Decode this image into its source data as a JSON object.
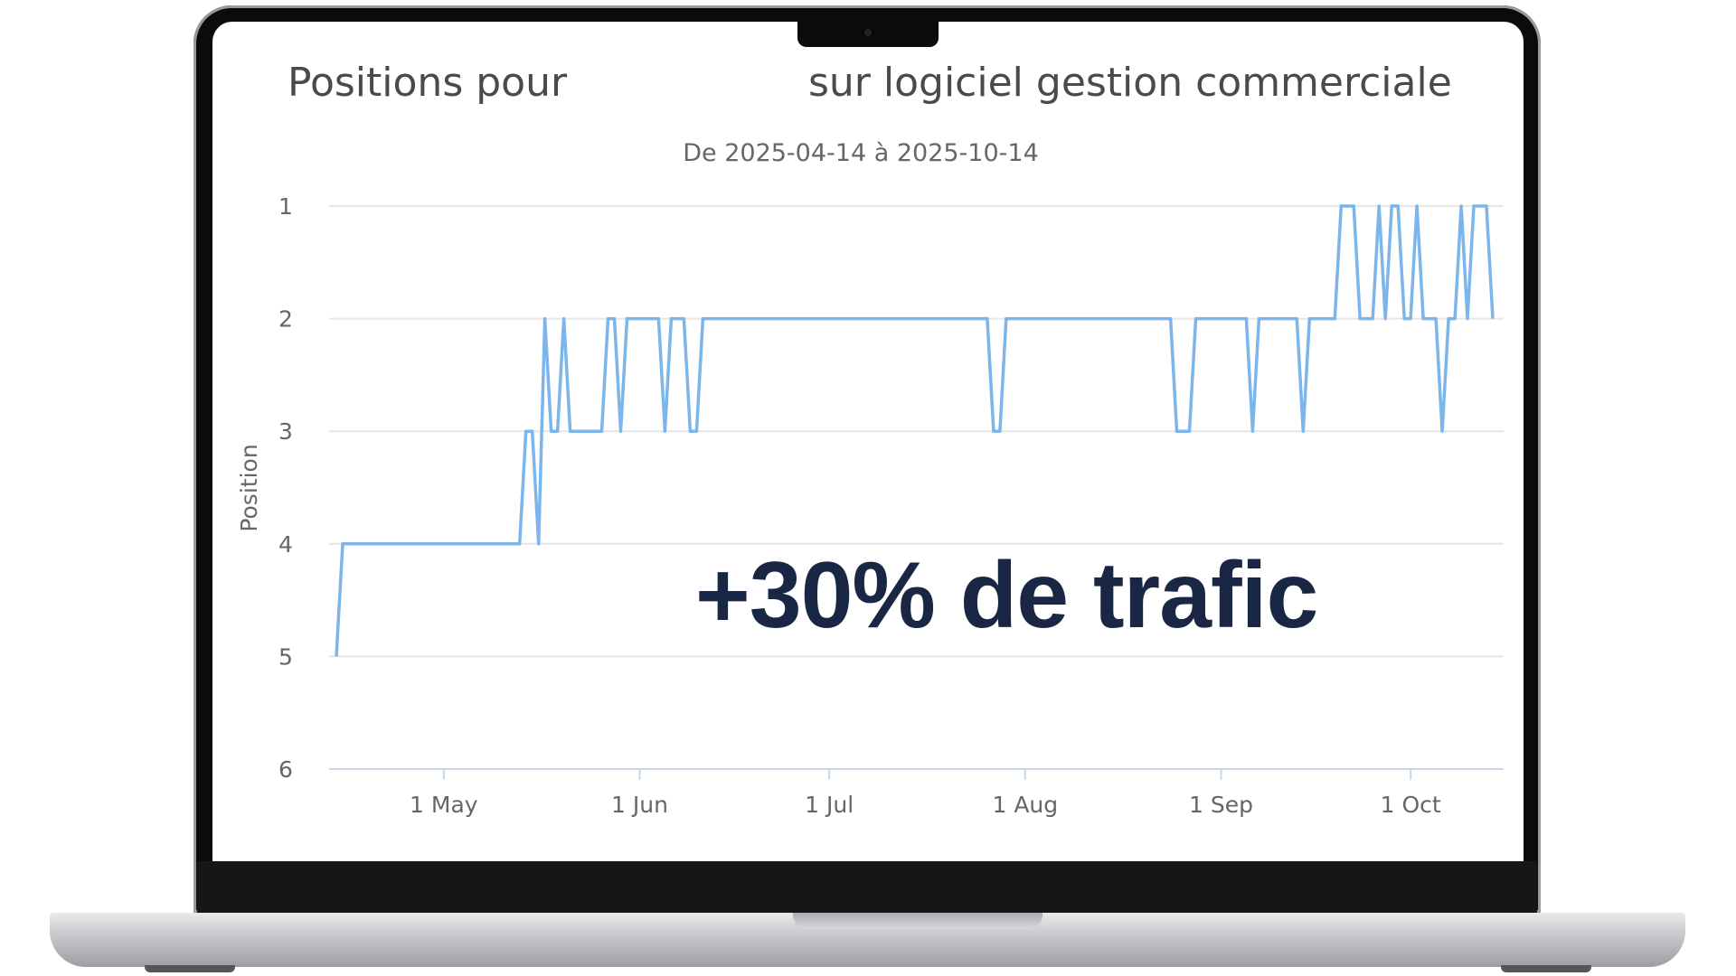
{
  "chart_data": {
    "type": "line",
    "title_prefix": "Positions pour",
    "title_suffix": "sur logiciel gestion commerciale",
    "subtitle": "De 2025-04-14 à 2025-10-14",
    "ylabel": "Position",
    "xlabel": "",
    "y_reversed": true,
    "ylim": [
      1,
      6
    ],
    "yticks": [
      "1",
      "2",
      "3",
      "4",
      "5",
      "6"
    ],
    "xlim": [
      "2025-04-14",
      "2025-10-14"
    ],
    "xticks": [
      {
        "label": "1 May",
        "date": "2025-05-01"
      },
      {
        "label": "1 Jun",
        "date": "2025-06-01"
      },
      {
        "label": "1 Jul",
        "date": "2025-07-01"
      },
      {
        "label": "1 Aug",
        "date": "2025-08-01"
      },
      {
        "label": "1 Sep",
        "date": "2025-09-01"
      },
      {
        "label": "1 Oct",
        "date": "2025-10-01"
      }
    ],
    "grid": true,
    "line_color": "#7cb5ec",
    "x_start": "2025-04-14",
    "x_step": "1 day",
    "values": [
      5,
      4,
      4,
      4,
      4,
      4,
      4,
      4,
      4,
      4,
      4,
      4,
      4,
      4,
      4,
      4,
      4,
      4,
      4,
      4,
      4,
      4,
      4,
      4,
      4,
      4,
      4,
      4,
      4,
      4,
      3,
      3,
      4,
      2,
      3,
      3,
      2,
      3,
      3,
      3,
      3,
      3,
      3,
      2,
      2,
      3,
      2,
      2,
      2,
      2,
      2,
      2,
      3,
      2,
      2,
      2,
      3,
      3,
      2,
      2,
      2,
      2,
      2,
      2,
      2,
      2,
      2,
      2,
      2,
      2,
      2,
      2,
      2,
      2,
      2,
      2,
      2,
      2,
      2,
      2,
      2,
      2,
      2,
      2,
      2,
      2,
      2,
      2,
      2,
      2,
      2,
      2,
      2,
      2,
      2,
      2,
      2,
      2,
      2,
      2,
      2,
      2,
      2,
      2,
      3,
      3,
      2,
      2,
      2,
      2,
      2,
      2,
      2,
      2,
      2,
      2,
      2,
      2,
      2,
      2,
      2,
      2,
      2,
      2,
      2,
      2,
      2,
      2,
      2,
      2,
      2,
      2,
      2,
      3,
      3,
      3,
      2,
      2,
      2,
      2,
      2,
      2,
      2,
      2,
      2,
      3,
      2,
      2,
      2,
      2,
      2,
      2,
      2,
      3,
      2,
      2,
      2,
      2,
      2,
      1,
      1,
      1,
      2,
      2,
      2,
      1,
      2,
      1,
      1,
      2,
      2,
      1,
      2,
      2,
      2,
      3,
      2,
      2,
      1,
      2,
      1,
      1,
      1,
      2
    ]
  },
  "overlay": {
    "text": "+30% de trafic",
    "color": "#1a2744"
  }
}
